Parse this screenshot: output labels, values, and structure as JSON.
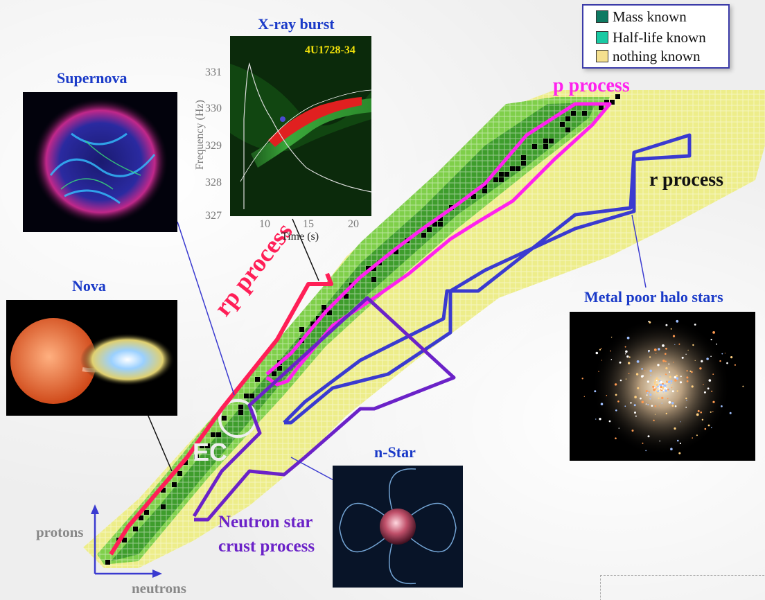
{
  "legend": {
    "items": [
      {
        "label": "Mass known",
        "color": "#0e7a62"
      },
      {
        "label": "Half-life known",
        "color": "#19c9a3"
      },
      {
        "label": "nothing known",
        "color": "#f5e08e"
      }
    ]
  },
  "panels": {
    "xray": {
      "title": "X-ray burst",
      "source": "4U1728-34",
      "ylabel": "Frequency (Hz)",
      "xlabel": "Time (s)",
      "yticks": [
        "331",
        "330",
        "329",
        "328",
        "327"
      ],
      "xticks": [
        "10",
        "15",
        "20"
      ]
    },
    "supernova": {
      "title": "Supernova"
    },
    "nova": {
      "title": "Nova"
    },
    "nstar": {
      "title": "n-Star"
    },
    "halo": {
      "title": "Metal poor halo stars"
    }
  },
  "processes": {
    "p": {
      "label": "p process",
      "color": "#ff22ee"
    },
    "r": {
      "label": "r process",
      "color": "#3a3ad0"
    },
    "rp": {
      "label": "rp process",
      "color": "#ff1f57"
    },
    "crust": {
      "label_line1": "Neutron star",
      "label_line2": "crust process",
      "color": "#6b22c8"
    },
    "ec": {
      "label": "EC"
    }
  },
  "axes": {
    "protons": "protons",
    "neutrons": "neutrons"
  },
  "colors": {
    "stable": "#000000",
    "mass_known": "#3e9d2c",
    "halflife_known": "#7fcf4a",
    "nothing_known": "#eded8a"
  }
}
